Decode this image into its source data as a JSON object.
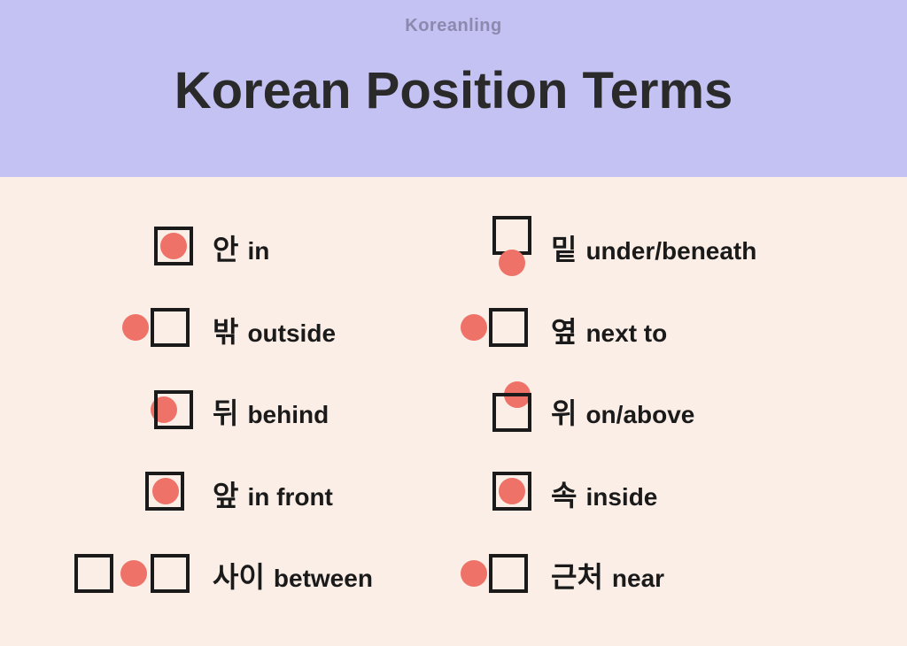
{
  "colors": {
    "header_bg": "#c4c1f3",
    "content_bg": "#fbeee7",
    "brand_text": "#8b89ad",
    "title_text": "#2a2a2a",
    "label_text": "#1a1a1a",
    "box_stroke": "#1a1a1a",
    "circle_fill": "#ee7268"
  },
  "typography": {
    "brand_size": 20,
    "title_size": 58,
    "korean_size": 32,
    "english_size": 28
  },
  "brand": "Koreanling",
  "title": "Korean Position Terms",
  "box_size": 40,
  "box_stroke_width": 4,
  "circle_radius": 15,
  "left_column": [
    {
      "id": "in",
      "korean": "안",
      "english": "in",
      "variant": "inside"
    },
    {
      "id": "outside",
      "korean": "밖",
      "english": "outside",
      "variant": "left-outside"
    },
    {
      "id": "behind",
      "korean": "뒤",
      "english": "behind",
      "variant": "behind"
    },
    {
      "id": "in-front",
      "korean": "앞",
      "english": "in front",
      "variant": "front"
    },
    {
      "id": "between",
      "korean": "사이",
      "english": "between",
      "variant": "between"
    }
  ],
  "right_column": [
    {
      "id": "under",
      "korean": "밑",
      "english": "under/beneath",
      "variant": "under"
    },
    {
      "id": "next-to",
      "korean": "옆",
      "english": "next to",
      "variant": "left-outside"
    },
    {
      "id": "above",
      "korean": "위",
      "english": "on/above",
      "variant": "above"
    },
    {
      "id": "inside2",
      "korean": "속",
      "english": "inside",
      "variant": "inside"
    },
    {
      "id": "near",
      "korean": "근처",
      "english": "near",
      "variant": "left-outside"
    }
  ]
}
